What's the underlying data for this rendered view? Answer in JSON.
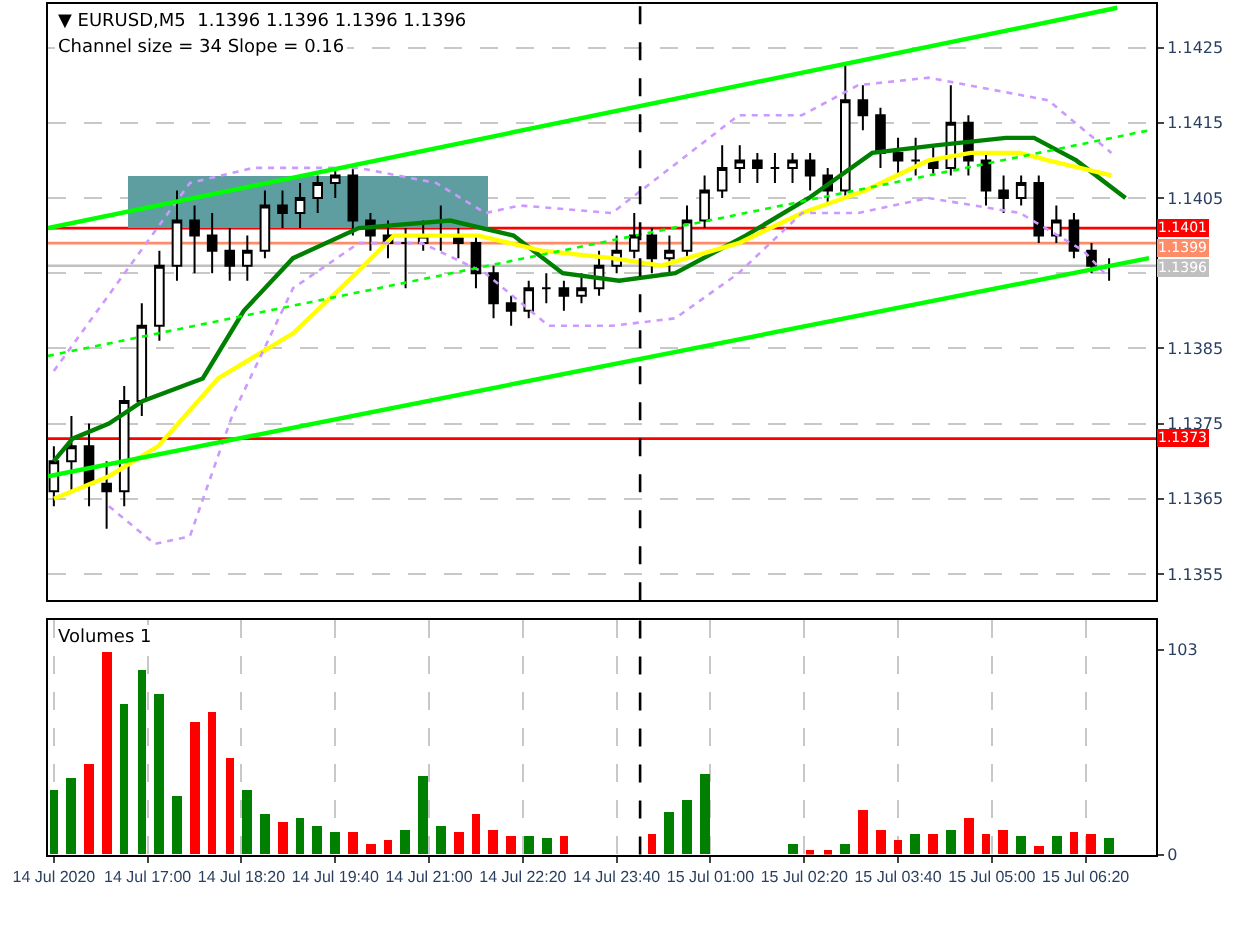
{
  "chart_data": [
    {
      "type": "candlestick",
      "title": "▼ EURUSD,M5  1.1396 1.1396 1.1396 1.1396",
      "subtitle": "Channel size = 34 Slope = 0.16",
      "x": [
        "2020-07-14T15:40",
        "2020-07-14T15:55",
        "2020-07-14T16:10",
        "2020-07-14T16:25",
        "2020-07-14T16:40",
        "2020-07-14T16:55",
        "2020-07-14T17:10",
        "2020-07-14T17:25",
        "2020-07-14T17:40",
        "2020-07-14T17:55",
        "2020-07-14T18:10",
        "2020-07-14T18:25",
        "2020-07-14T18:40",
        "2020-07-14T18:55",
        "2020-07-14T19:10",
        "2020-07-14T19:25",
        "2020-07-14T19:40",
        "2020-07-14T19:55",
        "2020-07-14T20:10",
        "2020-07-14T20:25",
        "2020-07-14T20:40",
        "2020-07-14T20:55",
        "2020-07-14T21:10",
        "2020-07-14T21:25",
        "2020-07-14T21:40",
        "2020-07-14T21:55",
        "2020-07-14T22:10",
        "2020-07-14T22:25",
        "2020-07-14T22:40",
        "2020-07-14T22:55",
        "2020-07-14T23:10",
        "2020-07-14T23:25",
        "2020-07-14T23:40",
        "2020-07-14T23:55",
        "2020-07-15T00:10",
        "2020-07-15T00:25",
        "2020-07-15T00:40",
        "2020-07-15T00:55",
        "2020-07-15T01:10",
        "2020-07-15T01:25",
        "2020-07-15T01:40",
        "2020-07-15T01:55",
        "2020-07-15T02:10",
        "2020-07-15T02:25",
        "2020-07-15T02:40",
        "2020-07-15T02:55",
        "2020-07-15T03:10",
        "2020-07-15T03:25",
        "2020-07-15T03:40",
        "2020-07-15T03:55",
        "2020-07-15T04:10",
        "2020-07-15T04:25",
        "2020-07-15T04:40",
        "2020-07-15T04:55",
        "2020-07-15T05:10",
        "2020-07-15T05:25",
        "2020-07-15T05:40",
        "2020-07-15T05:55",
        "2020-07-15T06:10",
        "2020-07-15T06:25",
        "2020-07-15T06:40"
      ],
      "ohlc": [
        [
          1.1366,
          1.1372,
          1.1364,
          1.137
        ],
        [
          1.137,
          1.1376,
          1.1366,
          1.1372
        ],
        [
          1.1372,
          1.1375,
          1.1364,
          1.1367
        ],
        [
          1.1367,
          1.137,
          1.1361,
          1.1366
        ],
        [
          1.1366,
          1.138,
          1.1364,
          1.1378
        ],
        [
          1.1378,
          1.1391,
          1.1376,
          1.1388
        ],
        [
          1.1388,
          1.1398,
          1.1386,
          1.1396
        ],
        [
          1.1396,
          1.1406,
          1.1394,
          1.1402
        ],
        [
          1.1402,
          1.1404,
          1.1395,
          1.14
        ],
        [
          1.14,
          1.1403,
          1.1395,
          1.1398
        ],
        [
          1.1398,
          1.1401,
          1.1394,
          1.1396
        ],
        [
          1.1396,
          1.14,
          1.1394,
          1.1398
        ],
        [
          1.1398,
          1.1406,
          1.1397,
          1.1404
        ],
        [
          1.1404,
          1.1406,
          1.1401,
          1.1403
        ],
        [
          1.1403,
          1.1407,
          1.1401,
          1.1405
        ],
        [
          1.1405,
          1.1408,
          1.1403,
          1.1407
        ],
        [
          1.1407,
          1.1409,
          1.1405,
          1.1408
        ],
        [
          1.1408,
          1.1409,
          1.14,
          1.1402
        ],
        [
          1.1402,
          1.1403,
          1.1398,
          1.14
        ],
        [
          1.14,
          1.1402,
          1.1397,
          1.1399
        ],
        [
          1.1399,
          1.1401,
          1.1393,
          1.1399
        ],
        [
          1.1399,
          1.1402,
          1.1398,
          1.14
        ],
        [
          1.14,
          1.1404,
          1.1398,
          1.14
        ],
        [
          1.14,
          1.1401,
          1.1397,
          1.1399
        ],
        [
          1.1399,
          1.14,
          1.1393,
          1.1395
        ],
        [
          1.1395,
          1.1396,
          1.1389,
          1.1391
        ],
        [
          1.1391,
          1.1392,
          1.1388,
          1.139
        ],
        [
          1.139,
          1.1394,
          1.1389,
          1.1393
        ],
        [
          1.1393,
          1.1395,
          1.1391,
          1.1393
        ],
        [
          1.1393,
          1.1394,
          1.139,
          1.1392
        ],
        [
          1.1392,
          1.1395,
          1.1391,
          1.1393
        ],
        [
          1.1393,
          1.1398,
          1.1392,
          1.1396
        ],
        [
          1.1396,
          1.14,
          1.1395,
          1.1398
        ],
        [
          1.1398,
          1.1403,
          1.1397,
          1.14
        ],
        [
          1.14,
          1.1401,
          1.1395,
          1.1397
        ],
        [
          1.1397,
          1.14,
          1.1395,
          1.1398
        ],
        [
          1.1398,
          1.1404,
          1.1397,
          1.1402
        ],
        [
          1.1402,
          1.1408,
          1.1401,
          1.1406
        ],
        [
          1.1406,
          1.1412,
          1.1405,
          1.1409
        ],
        [
          1.1409,
          1.1412,
          1.1407,
          1.141
        ],
        [
          1.141,
          1.1411,
          1.1407,
          1.1409
        ],
        [
          1.1409,
          1.1411,
          1.1407,
          1.1409
        ],
        [
          1.1409,
          1.1411,
          1.1407,
          1.141
        ],
        [
          1.141,
          1.1411,
          1.1406,
          1.1408
        ],
        [
          1.1408,
          1.1409,
          1.1404,
          1.1406
        ],
        [
          1.1406,
          1.1423,
          1.1405,
          1.1418
        ],
        [
          1.1418,
          1.142,
          1.1414,
          1.1416
        ],
        [
          1.1416,
          1.1417,
          1.1409,
          1.1411
        ],
        [
          1.1411,
          1.1413,
          1.1408,
          1.141
        ],
        [
          1.141,
          1.1413,
          1.1408,
          1.141
        ],
        [
          1.141,
          1.1412,
          1.1408,
          1.1409
        ],
        [
          1.1409,
          1.142,
          1.1408,
          1.1415
        ],
        [
          1.1415,
          1.1416,
          1.1408,
          1.141
        ],
        [
          1.141,
          1.1411,
          1.1404,
          1.1406
        ],
        [
          1.1406,
          1.1408,
          1.1403,
          1.1405
        ],
        [
          1.1405,
          1.1408,
          1.1404,
          1.1407
        ],
        [
          1.1407,
          1.1408,
          1.1399,
          1.14
        ],
        [
          1.14,
          1.1404,
          1.1399,
          1.1402
        ],
        [
          1.1402,
          1.1403,
          1.1397,
          1.1398
        ],
        [
          1.1398,
          1.1399,
          1.1395,
          1.1396
        ],
        [
          1.1396,
          1.1397,
          1.1394,
          1.1396
        ]
      ],
      "color": "#000000",
      "series": [
        {
          "type": "line",
          "color": "#008000",
          "x": [
            "2020-07-14T15:40",
            "2020-07-14T15:56",
            "2020-07-14T16:27",
            "2020-07-14T16:56",
            "2020-07-14T17:47",
            "2020-07-14T18:22",
            "2020-07-14T19:04",
            "2020-07-14T20:00",
            "2020-07-14T21:18",
            "2020-07-14T22:12",
            "2020-07-14T22:54",
            "2020-07-14T23:42",
            "2020-07-15T00:30",
            "2020-07-15T01:30",
            "2020-07-15T02:24",
            "2020-07-15T03:18",
            "2020-07-15T04:12",
            "2020-07-15T05:12",
            "2020-07-15T05:36",
            "2020-07-15T06:12",
            "2020-07-15T06:54"
          ],
          "values": [
            1.137,
            1.1373,
            1.1375,
            1.1378,
            1.1381,
            1.139,
            1.1397,
            1.1401,
            1.1402,
            1.14,
            1.1395,
            1.1394,
            1.1395,
            1.14,
            1.1405,
            1.1411,
            1.1412,
            1.1413,
            1.1413,
            1.141,
            1.1405
          ]
        },
        {
          "type": "line",
          "color": "#ffff00",
          "x": [
            "2020-07-14T15:40",
            "2020-07-14T16:27",
            "2020-07-14T17:09",
            "2020-07-14T18:00",
            "2020-07-14T19:04",
            "2020-07-14T19:58",
            "2020-07-14T20:30",
            "2020-07-14T21:42",
            "2020-07-14T22:36",
            "2020-07-14T23:36",
            "2020-07-15T00:18",
            "2020-07-15T01:24",
            "2020-07-15T02:18",
            "2020-07-15T03:12",
            "2020-07-15T04:06",
            "2020-07-15T04:42",
            "2020-07-15T05:24",
            "2020-07-15T05:48",
            "2020-07-15T06:42"
          ],
          "values": [
            1.1365,
            1.1368,
            1.1372,
            1.1381,
            1.1387,
            1.1395,
            1.14,
            1.14,
            1.1398,
            1.1397,
            1.1396,
            1.1399,
            1.1403,
            1.1406,
            1.141,
            1.1411,
            1.1411,
            1.141,
            1.1408
          ]
        },
        {
          "type": "line",
          "color": "#cc99ff",
          "line_style": "dotted",
          "x": [
            "2020-07-14T15:40",
            "2020-07-14T17:36",
            "2020-07-14T18:30",
            "2020-07-14T20:00",
            "2020-07-14T21:06",
            "2020-07-14T21:48",
            "2020-07-14T22:18",
            "2020-07-14T23:36",
            "2020-07-15T01:24",
            "2020-07-15T02:18",
            "2020-07-15T03:06",
            "2020-07-15T04:06",
            "2020-07-15T05:48",
            "2020-07-15T06:42"
          ],
          "values": [
            1.1382,
            1.1407,
            1.1409,
            1.1409,
            1.1407,
            1.1403,
            1.1404,
            1.1403,
            1.1416,
            1.1416,
            1.142,
            1.1421,
            1.1418,
            1.1411
          ]
        },
        {
          "type": "line",
          "color": "#cc99ff",
          "line_style": "dotted",
          "x": [
            "2020-07-14T16:27",
            "2020-07-14T17:06",
            "2020-07-14T17:36",
            "2020-07-14T18:12",
            "2020-07-14T19:04",
            "2020-07-14T20:00",
            "2020-07-14T20:54",
            "2020-07-14T21:48",
            "2020-07-14T22:42",
            "2020-07-14T23:36",
            "2020-07-15T00:30",
            "2020-07-15T01:24",
            "2020-07-15T02:18",
            "2020-07-15T03:06",
            "2020-07-15T04:06",
            "2020-07-15T05:24",
            "2020-07-15T06:18",
            "2020-07-15T06:36"
          ],
          "values": [
            1.1364,
            1.1359,
            1.136,
            1.1376,
            1.1393,
            1.1399,
            1.1399,
            1.1395,
            1.1388,
            1.1388,
            1.1389,
            1.1395,
            1.1403,
            1.1403,
            1.1405,
            1.1403,
            1.1398,
            1.1395
          ]
        },
        {
          "type": "line",
          "color": "#00ff00",
          "x": [
            "2020-07-14T15:35",
            "2020-07-15T06:47"
          ],
          "values": [
            1.1401,
            1.14303
          ]
        },
        {
          "type": "line",
          "color": "#00ff00",
          "x": [
            "2020-07-14T15:35",
            "2020-07-15T07:14"
          ],
          "values": [
            1.1368,
            1.1397
          ]
        },
        {
          "type": "line",
          "color": "#5f9ea0",
          "x": [
            "2020-07-14T16:44",
            "2020-07-14T21:51"
          ],
          "values": [
            null,
            null
          ],
          "lower": [
            1.1401,
            1.1401
          ],
          "upper": [
            1.1408,
            1.1408
          ]
        },
        {
          "type": "line",
          "color": "#00ff00",
          "line_style": "dotted",
          "x": [
            "2020-07-14T15:35",
            "2020-07-15T07:14"
          ],
          "values": [
            1.1384,
            1.1414
          ]
        }
      ],
      "ref_lines": [
        {
          "axis": "y",
          "value": 1.1401,
          "label": "1.1401",
          "color": "#ff0000"
        },
        {
          "axis": "y",
          "value": 1.1399,
          "label": "1.1399",
          "color": "#ff8c69"
        },
        {
          "axis": "y",
          "value": 1.1396,
          "label": "1.1396",
          "color": "#c0c0c0"
        },
        {
          "axis": "y",
          "value": 1.1373,
          "label": "1.1373",
          "color": "#ff0000"
        },
        {
          "axis": "x",
          "value": "2020-07-15T00:00",
          "color": "#000000",
          "line_style": "dashed"
        }
      ],
      "xlim": [
        "2020-07-14T15:35",
        "2020-07-15T07:20"
      ],
      "ylim": [
        1.13515,
        1.14308
      ],
      "yticks": [
        1.1355,
        1.1365,
        1.1375,
        1.1385,
        {
          "value": 1.1395,
          "label": null
        },
        1.1405,
        1.1415,
        1.1425
      ],
      "grid": true,
      "tick_labels": "y"
    },
    {
      "type": "bar",
      "title": "Volumes 1",
      "x": [
        "2020-07-14T15:40",
        "2020-07-14T15:55",
        "2020-07-14T16:10",
        "2020-07-14T16:25",
        "2020-07-14T16:40",
        "2020-07-14T16:55",
        "2020-07-14T17:10",
        "2020-07-14T17:25",
        "2020-07-14T17:40",
        "2020-07-14T17:55",
        "2020-07-14T18:10",
        "2020-07-14T18:25",
        "2020-07-14T18:40",
        "2020-07-14T18:55",
        "2020-07-14T19:10",
        "2020-07-14T19:25",
        "2020-07-14T19:40",
        "2020-07-14T19:55",
        "2020-07-14T20:10",
        "2020-07-14T20:25",
        "2020-07-14T20:40",
        "2020-07-14T20:55",
        "2020-07-14T21:10",
        "2020-07-14T21:25",
        "2020-07-14T21:40",
        "2020-07-14T21:55",
        "2020-07-14T22:10",
        "2020-07-14T22:25",
        "2020-07-14T22:40",
        "2020-07-14T22:55",
        "2020-07-14T23:10",
        "2020-07-14T23:25",
        "2020-07-14T23:40",
        "2020-07-14T23:55",
        "2020-07-15T00:10",
        "2020-07-15T00:25",
        "2020-07-15T00:40",
        "2020-07-15T00:55",
        "2020-07-15T01:10",
        "2020-07-15T01:25",
        "2020-07-15T01:40",
        "2020-07-15T01:55",
        "2020-07-15T02:10",
        "2020-07-15T02:25",
        "2020-07-15T02:40",
        "2020-07-15T02:55",
        "2020-07-15T03:10",
        "2020-07-15T03:25",
        "2020-07-15T03:40",
        "2020-07-15T03:55",
        "2020-07-15T04:10",
        "2020-07-15T04:25",
        "2020-07-15T04:40",
        "2020-07-15T04:55",
        "2020-07-15T05:10",
        "2020-07-15T05:25",
        "2020-07-15T05:40",
        "2020-07-15T05:55",
        "2020-07-15T06:10",
        "2020-07-15T06:25",
        "2020-07-15T06:40"
      ],
      "values": [
        33,
        39,
        46,
        102,
        76,
        93,
        81,
        30,
        67,
        72,
        49,
        33,
        21,
        16,
        18,
        14,
        11,
        11,
        5,
        7,
        12,
        40,
        14,
        11,
        21,
        12,
        9,
        9,
        8,
        9,
        null,
        null,
        null,
        null,
        10,
        22,
        28,
        41,
        null,
        null,
        null,
        null,
        5,
        2,
        2,
        5,
        23,
        12,
        7,
        10,
        10,
        12,
        18,
        10,
        12,
        9,
        4,
        9,
        11,
        10,
        8
      ],
      "colors": [
        "#008000",
        "#008000",
        "#ff0000",
        "#ff0000",
        "#008000",
        "#008000",
        "#008000",
        "#008000",
        "#ff0000",
        "#ff0000",
        "#ff0000",
        "#008000",
        "#008000",
        "#ff0000",
        "#008000",
        "#008000",
        "#008000",
        "#ff0000",
        "#ff0000",
        "#ff0000",
        "#008000",
        "#008000",
        "#008000",
        "#ff0000",
        "#ff0000",
        "#ff0000",
        "#ff0000",
        "#008000",
        "#008000",
        "#ff0000",
        "#008000",
        "#008000",
        "#008000",
        "#008000",
        "#ff0000",
        "#008000",
        "#008000",
        "#008000",
        "#008000",
        "#008000",
        "#ff0000",
        "#008000",
        "#008000",
        "#ff0000",
        "#ff0000",
        "#008000",
        "#ff0000",
        "#ff0000",
        "#ff0000",
        "#008000",
        "#ff0000",
        "#008000",
        "#ff0000",
        "#ff0000",
        "#ff0000",
        "#008000",
        "#ff0000",
        "#008000",
        "#ff0000",
        "#ff0000",
        "#008000"
      ],
      "ref_lines": [
        {
          "axis": "x",
          "value": "2020-07-15T00:00",
          "color": "#000000",
          "line_style": "dashed"
        }
      ],
      "xlim": [
        "2020-07-14T15:35",
        "2020-07-15T07:20"
      ],
      "ylim": [
        0,
        118
      ],
      "yticks": [
        0,
        103
      ],
      "xticks": [
        {
          "value": "2020-07-14T15:40",
          "label": "14 Jul 2020"
        },
        {
          "value": "2020-07-14T17:00",
          "label": "14 Jul 17:00"
        },
        {
          "value": "2020-07-14T18:20",
          "label": "14 Jul 18:20"
        },
        {
          "value": "2020-07-14T19:40",
          "label": "14 Jul 19:40"
        },
        {
          "value": "2020-07-14T21:00",
          "label": "14 Jul 21:00"
        },
        {
          "value": "2020-07-14T22:20",
          "label": "14 Jul 22:20"
        },
        {
          "value": "2020-07-14T23:40",
          "label": "14 Jul 23:40"
        },
        {
          "value": "2020-07-15T01:00",
          "label": "15 Jul 01:00"
        },
        {
          "value": "2020-07-15T02:20",
          "label": "15 Jul 02:20"
        },
        {
          "value": "2020-07-15T03:40",
          "label": "15 Jul 03:40"
        },
        {
          "value": "2020-07-15T05:00",
          "label": "15 Jul 05:00"
        },
        {
          "value": "2020-07-15T06:20",
          "label": "15 Jul 06:20"
        }
      ],
      "grid": "x"
    }
  ]
}
